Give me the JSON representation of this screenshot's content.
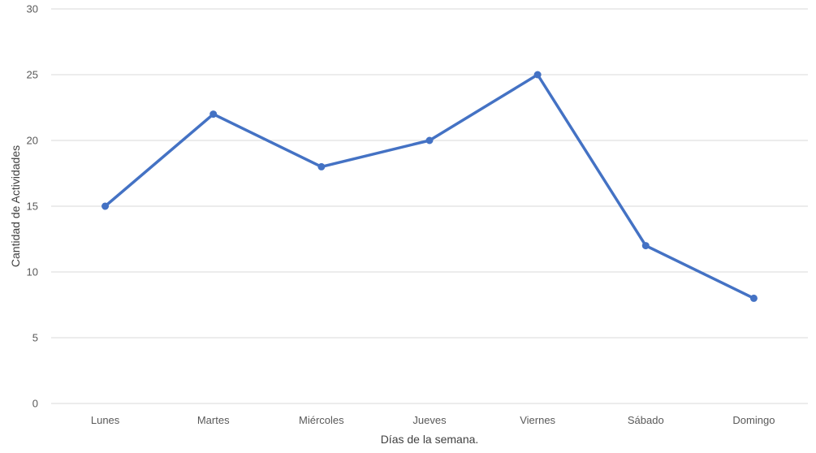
{
  "chart_data": {
    "type": "line",
    "title": "",
    "xlabel": "Días de la semana.",
    "ylabel": "Cantidad de Actividades",
    "categories": [
      "Lunes",
      "Martes",
      "Miércoles",
      "Jueves",
      "Viernes",
      "Sábado",
      "Domingo"
    ],
    "series": [
      {
        "values": [
          15,
          22,
          18,
          20,
          25,
          12,
          8
        ]
      }
    ],
    "ylim": [
      0,
      30
    ],
    "yticks": [
      0,
      5,
      10,
      15,
      20,
      25,
      30
    ],
    "grid": "horizontal",
    "legend": "none",
    "colors": {
      "line": "#4472C4",
      "grid": "#D9D9D9",
      "tick_text": "#595959",
      "axis_title": "#404040"
    }
  }
}
